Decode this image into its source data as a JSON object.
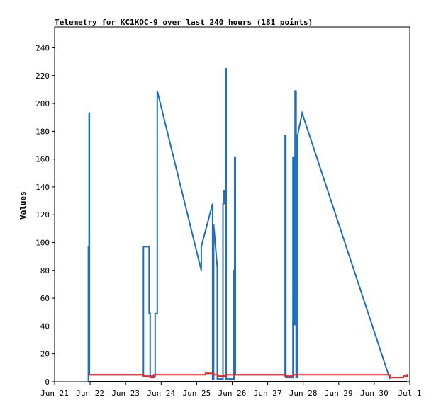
{
  "chart_data": {
    "type": "line",
    "title": "Telemetry for KC1KOC-9 over last 240 hours (181 points)",
    "xlabel": "",
    "ylabel": "Values",
    "ylim": [
      0,
      255
    ],
    "yticks": [
      0,
      20,
      40,
      60,
      80,
      100,
      120,
      140,
      160,
      180,
      200,
      220,
      240
    ],
    "xlim": [
      0,
      10
    ],
    "xticks": [
      {
        "x": 0,
        "label": "Jun 21"
      },
      {
        "x": 1,
        "label": "Jun 22"
      },
      {
        "x": 2,
        "label": "Jun 23"
      },
      {
        "x": 3,
        "label": "Jun 24"
      },
      {
        "x": 4,
        "label": "Jun 25"
      },
      {
        "x": 5,
        "label": "Jun 26"
      },
      {
        "x": 6,
        "label": "Jun 27"
      },
      {
        "x": 7,
        "label": "Jun 28"
      },
      {
        "x": 8,
        "label": "Jun 29"
      },
      {
        "x": 9,
        "label": "Jun 30"
      },
      {
        "x": 10,
        "label": "Jul 1"
      }
    ],
    "grid": false,
    "legend": "none",
    "series": [
      {
        "color": "#1f6fc1",
        "points": [
          [
            0.95,
            0
          ],
          [
            0.95,
            97
          ],
          [
            0.97,
            97
          ],
          [
            0.97,
            193
          ],
          [
            0.98,
            193
          ],
          [
            0.98,
            5
          ],
          [
            2.5,
            5
          ],
          [
            2.5,
            97
          ],
          [
            2.66,
            97
          ],
          [
            2.66,
            49
          ],
          [
            2.69,
            49
          ],
          [
            2.69,
            4
          ],
          [
            2.83,
            4
          ],
          [
            2.83,
            49
          ],
          [
            2.89,
            49
          ],
          [
            2.89,
            209
          ],
          [
            4.13,
            80
          ],
          [
            4.13,
            97
          ],
          [
            4.45,
            128
          ],
          [
            4.45,
            2
          ],
          [
            4.48,
            2
          ],
          [
            4.48,
            113
          ],
          [
            4.58,
            82
          ],
          [
            4.58,
            2
          ],
          [
            4.74,
            2
          ],
          [
            4.74,
            128
          ],
          [
            4.77,
            128
          ],
          [
            4.77,
            137
          ],
          [
            4.81,
            137
          ],
          [
            4.81,
            225
          ],
          [
            4.83,
            225
          ],
          [
            4.83,
            2
          ],
          [
            5.05,
            2
          ],
          [
            5.05,
            80
          ],
          [
            5.07,
            80
          ],
          [
            5.07,
            161
          ],
          [
            5.09,
            161
          ],
          [
            5.09,
            5
          ],
          [
            6.49,
            5
          ],
          [
            6.49,
            177
          ],
          [
            6.51,
            177
          ],
          [
            6.51,
            3
          ],
          [
            6.71,
            3
          ],
          [
            6.71,
            161
          ],
          [
            6.74,
            161
          ],
          [
            6.74,
            41
          ],
          [
            6.77,
            41
          ],
          [
            6.77,
            209
          ],
          [
            6.8,
            209
          ],
          [
            6.8,
            3
          ],
          [
            6.84,
            3
          ],
          [
            6.84,
            177
          ],
          [
            6.97,
            193
          ],
          [
            9.44,
            2
          ]
        ]
      },
      {
        "color": "#ee2222",
        "points": [
          [
            0.95,
            5
          ],
          [
            2.5,
            5
          ],
          [
            2.5,
            4
          ],
          [
            2.69,
            4
          ],
          [
            2.69,
            3
          ],
          [
            2.79,
            3
          ],
          [
            2.79,
            5
          ],
          [
            4.25,
            5
          ],
          [
            4.25,
            6
          ],
          [
            4.48,
            6
          ],
          [
            4.48,
            5
          ],
          [
            4.6,
            5
          ],
          [
            4.6,
            4
          ],
          [
            4.83,
            4
          ],
          [
            4.83,
            5
          ],
          [
            5.09,
            5
          ],
          [
            6.49,
            5
          ],
          [
            6.49,
            4
          ],
          [
            6.72,
            4
          ],
          [
            6.72,
            5
          ],
          [
            9.44,
            5
          ],
          [
            9.44,
            3
          ],
          [
            9.82,
            3
          ],
          [
            9.82,
            4
          ],
          [
            9.9,
            4
          ],
          [
            9.9,
            5
          ],
          [
            9.92,
            5
          ],
          [
            9.92,
            3
          ]
        ]
      },
      {
        "color": "#000000",
        "points": [
          [
            0.95,
            0
          ],
          [
            9.92,
            0
          ]
        ]
      }
    ]
  }
}
